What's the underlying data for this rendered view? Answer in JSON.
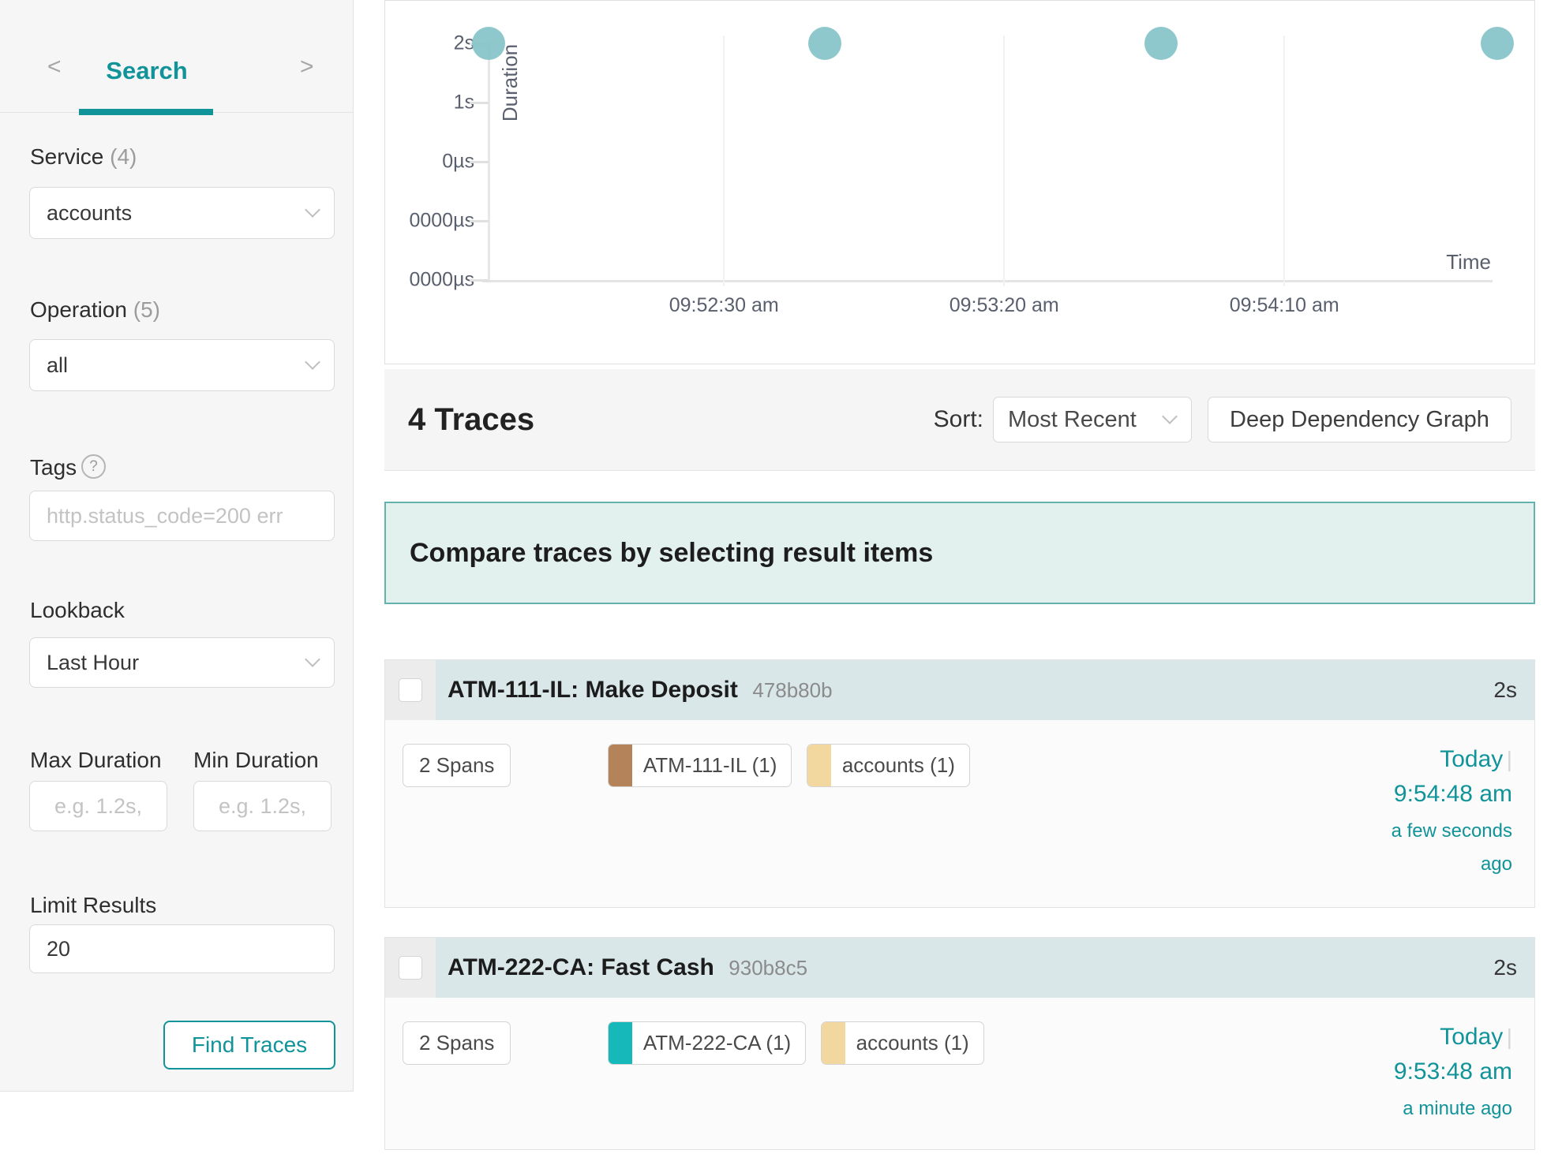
{
  "accent_color": "#11939a",
  "sidebar": {
    "nav": {
      "prev": "<",
      "title": "Search",
      "next": ">"
    },
    "service": {
      "label": "Service",
      "count": "(4)",
      "value": "accounts"
    },
    "operation": {
      "label": "Operation",
      "count": "(5)",
      "value": "all"
    },
    "tags": {
      "label": "Tags",
      "help": "?",
      "placeholder": "http.status_code=200 err"
    },
    "lookback": {
      "label": "Lookback",
      "value": "Last Hour"
    },
    "max_duration": {
      "label": "Max Duration",
      "placeholder": "e.g. 1.2s,"
    },
    "min_duration": {
      "label": "Min Duration",
      "placeholder": "e.g. 1.2s,"
    },
    "limit": {
      "label": "Limit Results",
      "value": "20"
    },
    "find_button": "Find Traces"
  },
  "chart_data": {
    "type": "scatter",
    "xlabel": "Time",
    "ylabel": "Duration",
    "y_ticks": [
      "2s",
      "1s",
      "0µs",
      "0000µs",
      "0000µs"
    ],
    "x_ticks": [
      "09:52:30 am",
      "09:53:20 am",
      "09:54:10 am"
    ],
    "x_range": [
      "09:51:48 am",
      "09:54:48 am"
    ],
    "dot_color": "#85c3c8",
    "points": [
      {
        "time": "09:51:48 am",
        "duration_label": "2s",
        "duration_s": 2
      },
      {
        "time": "09:52:48 am",
        "duration_label": "2s",
        "duration_s": 2
      },
      {
        "time": "09:53:48 am",
        "duration_label": "2s",
        "duration_s": 2
      },
      {
        "time": "09:54:48 am",
        "duration_label": "2s",
        "duration_s": 2
      }
    ]
  },
  "results": {
    "count_label": "4 Traces",
    "sort_label": "Sort:",
    "sort_value": "Most Recent",
    "ddg_button": "Deep Dependency Graph",
    "banner": "Compare traces by selecting result items"
  },
  "traces": [
    {
      "title": "ATM-111-IL: Make Deposit",
      "trace_id": "478b80b",
      "duration": "2s",
      "spans": "2 Spans",
      "services": [
        {
          "name": "ATM-111-IL (1)",
          "color": "#b5835a"
        },
        {
          "name": "accounts (1)",
          "color": "#f2d79e"
        }
      ],
      "date": "Today",
      "divider": "|",
      "time": "9:54:48 am",
      "relative": "a few seconds ago"
    },
    {
      "title": "ATM-222-CA: Fast Cash",
      "trace_id": "930b8c5",
      "duration": "2s",
      "spans": "2 Spans",
      "services": [
        {
          "name": "ATM-222-CA (1)",
          "color": "#16b8b9"
        },
        {
          "name": "accounts (1)",
          "color": "#f2d79e"
        }
      ],
      "date": "Today",
      "divider": "|",
      "time": "9:53:48 am",
      "relative": "a minute ago"
    }
  ]
}
